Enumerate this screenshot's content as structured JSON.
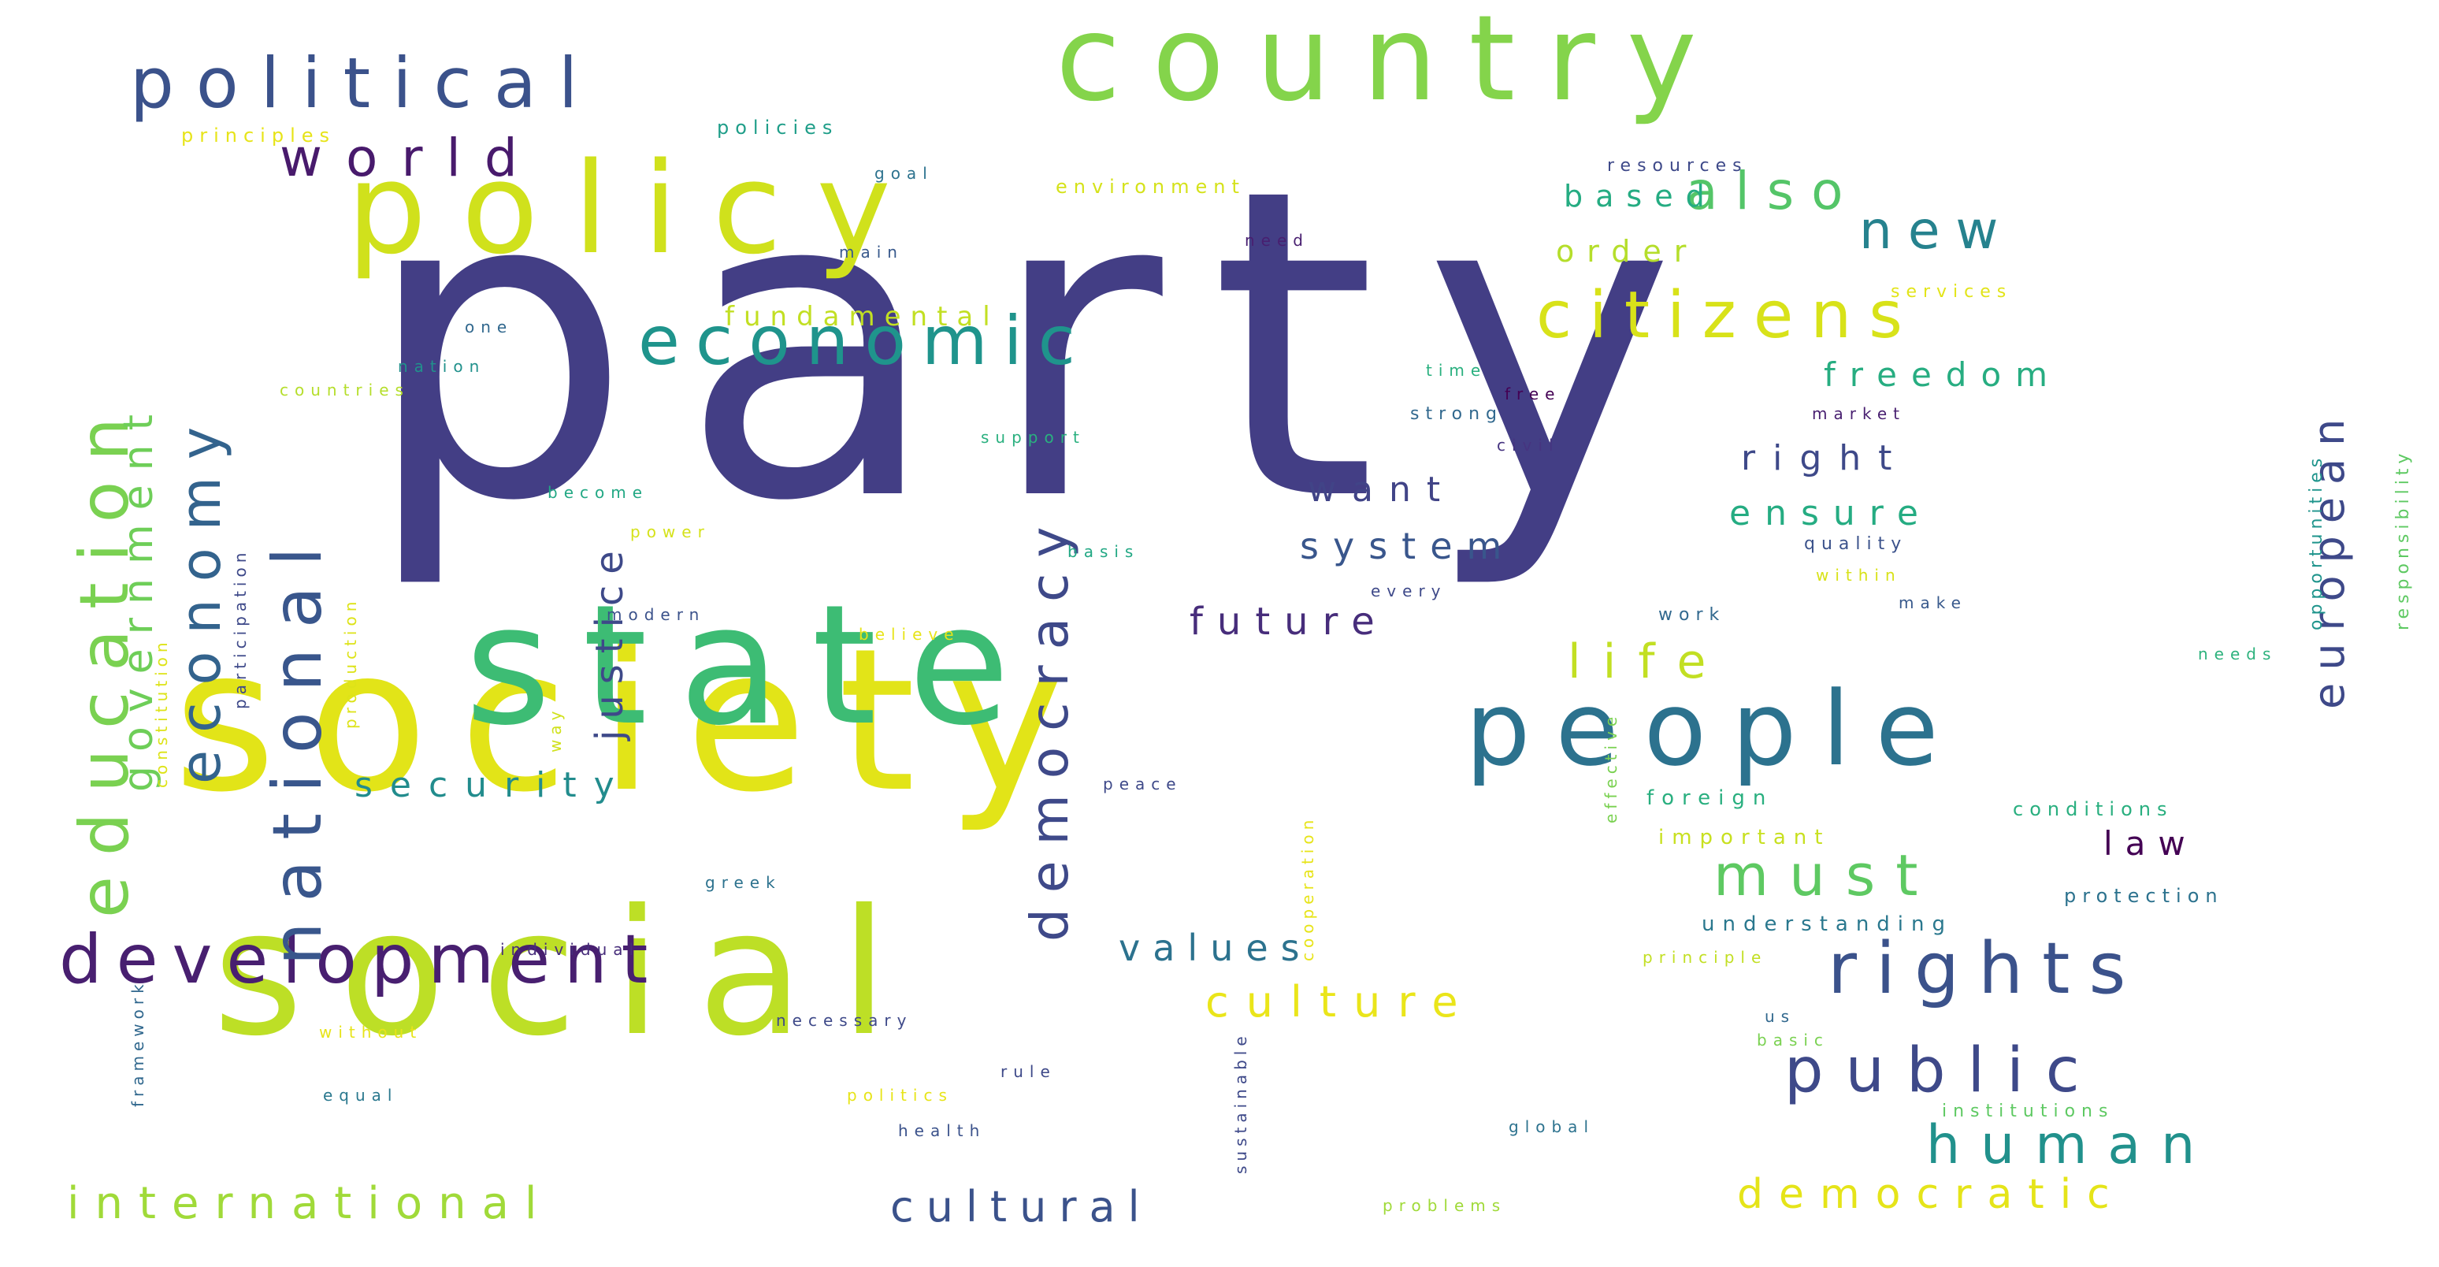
{
  "words": [
    {
      "text": "party",
      "color": "#433e85",
      "orientation": "horizontal"
    },
    {
      "text": "society",
      "color": "#e2e418",
      "orientation": "horizontal"
    },
    {
      "text": "social",
      "color": "#bddf26",
      "orientation": "horizontal"
    },
    {
      "text": "state",
      "color": "#3dbc74",
      "orientation": "horizontal"
    },
    {
      "text": "policy",
      "color": "#d0e11c",
      "orientation": "horizontal"
    },
    {
      "text": "country",
      "color": "#84d44b",
      "orientation": "horizontal"
    },
    {
      "text": "people",
      "color": "#2c728e",
      "orientation": "horizontal"
    },
    {
      "text": "political",
      "color": "#3b528b",
      "orientation": "horizontal"
    },
    {
      "text": "development",
      "color": "#481f70",
      "orientation": "horizontal"
    },
    {
      "text": "economic",
      "color": "#1f948c",
      "orientation": "horizontal"
    },
    {
      "text": "rights",
      "color": "#3b528b",
      "orientation": "horizontal"
    },
    {
      "text": "national",
      "color": "#39568c",
      "orientation": "vertical"
    },
    {
      "text": "education",
      "color": "#7ad151",
      "orientation": "vertical"
    },
    {
      "text": "citizens",
      "color": "#d8e219",
      "orientation": "horizontal"
    },
    {
      "text": "economy",
      "color": "#33638d",
      "orientation": "vertical"
    },
    {
      "text": "democracy",
      "color": "#3e4989",
      "orientation": "vertical"
    },
    {
      "text": "public",
      "color": "#3e4989",
      "orientation": "horizontal"
    },
    {
      "text": "must",
      "color": "#5ec962",
      "orientation": "horizontal"
    },
    {
      "text": "human",
      "color": "#21918c",
      "orientation": "horizontal"
    },
    {
      "text": "government",
      "color": "#6ece58",
      "orientation": "vertical"
    },
    {
      "text": "new",
      "color": "#26828e",
      "orientation": "horizontal"
    },
    {
      "text": "also",
      "color": "#54c568",
      "orientation": "horizontal"
    },
    {
      "text": "world",
      "color": "#481a6c",
      "orientation": "horizontal"
    },
    {
      "text": "international",
      "color": "#a0da39",
      "orientation": "horizontal"
    },
    {
      "text": "cultural",
      "color": "#3b528b",
      "orientation": "horizontal"
    },
    {
      "text": "democratic",
      "color": "#e5e419",
      "orientation": "horizontal"
    },
    {
      "text": "european",
      "color": "#3e4989",
      "orientation": "vertical"
    },
    {
      "text": "life",
      "color": "#c2df23",
      "orientation": "horizontal"
    },
    {
      "text": "culture",
      "color": "#eae51a",
      "orientation": "horizontal"
    },
    {
      "text": "future",
      "color": "#472d7b",
      "orientation": "horizontal"
    },
    {
      "text": "justice",
      "color": "#3e4989",
      "orientation": "vertical"
    },
    {
      "text": "values",
      "color": "#2c728e",
      "orientation": "horizontal"
    },
    {
      "text": "system",
      "color": "#39568c",
      "orientation": "horizontal"
    },
    {
      "text": "security",
      "color": "#228c8d",
      "orientation": "horizontal"
    },
    {
      "text": "ensure",
      "color": "#25ac82",
      "orientation": "horizontal"
    },
    {
      "text": "freedom",
      "color": "#27ad81",
      "orientation": "horizontal"
    },
    {
      "text": "right",
      "color": "#3e4989",
      "orientation": "horizontal"
    },
    {
      "text": "want",
      "color": "#414487",
      "orientation": "horizontal"
    },
    {
      "text": "law",
      "color": "#440154",
      "orientation": "horizontal"
    },
    {
      "text": "based",
      "color": "#25ac82",
      "orientation": "horizontal"
    },
    {
      "text": "order",
      "color": "#b5de2b",
      "orientation": "horizontal"
    },
    {
      "text": "fundamental",
      "color": "#c2df23",
      "orientation": "horizontal"
    },
    {
      "text": "understanding",
      "color": "#2a788e",
      "orientation": "horizontal"
    },
    {
      "text": "important",
      "color": "#c8e020",
      "orientation": "horizontal"
    },
    {
      "text": "foreign",
      "color": "#29af7f",
      "orientation": "horizontal"
    },
    {
      "text": "conditions",
      "color": "#29af7f",
      "orientation": "horizontal"
    },
    {
      "text": "protection",
      "color": "#2c728e",
      "orientation": "horizontal"
    },
    {
      "text": "institutions",
      "color": "#5ec962",
      "orientation": "horizontal"
    },
    {
      "text": "environment",
      "color": "#d5e21a",
      "orientation": "horizontal"
    },
    {
      "text": "policies",
      "color": "#1f9e89",
      "orientation": "horizontal"
    },
    {
      "text": "principles",
      "color": "#e7e419",
      "orientation": "horizontal"
    },
    {
      "text": "resources",
      "color": "#3e4989",
      "orientation": "horizontal"
    },
    {
      "text": "opportunities",
      "color": "#1f948c",
      "orientation": "vertical"
    },
    {
      "text": "responsibility",
      "color": "#5ec962",
      "orientation": "vertical"
    },
    {
      "text": "services",
      "color": "#e2e418",
      "orientation": "horizontal"
    },
    {
      "text": "strong",
      "color": "#31688e",
      "orientation": "horizontal"
    },
    {
      "text": "market",
      "color": "#481f70",
      "orientation": "horizontal"
    },
    {
      "text": "civil",
      "color": "#463480",
      "orientation": "horizontal"
    },
    {
      "text": "free",
      "color": "#440154",
      "orientation": "horizontal"
    },
    {
      "text": "time",
      "color": "#2ab07f",
      "orientation": "horizontal"
    },
    {
      "text": "quality",
      "color": "#3b528b",
      "orientation": "horizontal"
    },
    {
      "text": "within",
      "color": "#d8e219",
      "orientation": "horizontal"
    },
    {
      "text": "make",
      "color": "#38598c",
      "orientation": "horizontal"
    },
    {
      "text": "needs",
      "color": "#2db27d",
      "orientation": "horizontal"
    },
    {
      "text": "work",
      "color": "#31688e",
      "orientation": "horizontal"
    },
    {
      "text": "every",
      "color": "#3e4989",
      "orientation": "horizontal"
    },
    {
      "text": "effective",
      "color": "#7ad151",
      "orientation": "vertical"
    },
    {
      "text": "basis",
      "color": "#22a884",
      "orientation": "horizontal"
    },
    {
      "text": "support",
      "color": "#2ab07f",
      "orientation": "horizontal"
    },
    {
      "text": "need",
      "color": "#481f70",
      "orientation": "horizontal"
    },
    {
      "text": "main",
      "color": "#38598c",
      "orientation": "horizontal"
    },
    {
      "text": "goal",
      "color": "#2c728e",
      "orientation": "horizontal"
    },
    {
      "text": "one",
      "color": "#31688e",
      "orientation": "horizontal"
    },
    {
      "text": "nation",
      "color": "#21918c",
      "orientation": "horizontal"
    },
    {
      "text": "countries",
      "color": "#b5de2b",
      "orientation": "horizontal"
    },
    {
      "text": "constitution",
      "color": "#dde318",
      "orientation": "vertical"
    },
    {
      "text": "participation",
      "color": "#3e4989",
      "orientation": "vertical"
    },
    {
      "text": "production",
      "color": "#dde318",
      "orientation": "vertical"
    },
    {
      "text": "become",
      "color": "#22a884",
      "orientation": "horizontal"
    },
    {
      "text": "power",
      "color": "#d5e21a",
      "orientation": "horizontal"
    },
    {
      "text": "modern",
      "color": "#3b528b",
      "orientation": "horizontal"
    },
    {
      "text": "way",
      "color": "#d0e11c",
      "orientation": "vertical"
    },
    {
      "text": "believe",
      "color": "#e7e419",
      "orientation": "horizontal"
    },
    {
      "text": "peace",
      "color": "#3e4989",
      "orientation": "horizontal"
    },
    {
      "text": "cooperation",
      "color": "#e7e419",
      "orientation": "vertical"
    },
    {
      "text": "sustainable",
      "color": "#3e4989",
      "orientation": "vertical"
    },
    {
      "text": "greek",
      "color": "#2c728e",
      "orientation": "horizontal"
    },
    {
      "text": "individual",
      "color": "#472d7b",
      "orientation": "horizontal"
    },
    {
      "text": "necessary",
      "color": "#3e4989",
      "orientation": "horizontal"
    },
    {
      "text": "without",
      "color": "#e7e419",
      "orientation": "horizontal"
    },
    {
      "text": "rule",
      "color": "#3e4989",
      "orientation": "horizontal"
    },
    {
      "text": "politics",
      "color": "#e7e419",
      "orientation": "horizontal"
    },
    {
      "text": "health",
      "color": "#3b528b",
      "orientation": "horizontal"
    },
    {
      "text": "equal",
      "color": "#2a788e",
      "orientation": "horizontal"
    },
    {
      "text": "framework",
      "color": "#31688e",
      "orientation": "vertical"
    },
    {
      "text": "principle",
      "color": "#c2df23",
      "orientation": "horizontal"
    },
    {
      "text": "us",
      "color": "#31688e",
      "orientation": "horizontal"
    },
    {
      "text": "basic",
      "color": "#7ad151",
      "orientation": "horizontal"
    },
    {
      "text": "global",
      "color": "#2c728e",
      "orientation": "horizontal"
    },
    {
      "text": "problems",
      "color": "#a0da39",
      "orientation": "horizontal"
    }
  ]
}
